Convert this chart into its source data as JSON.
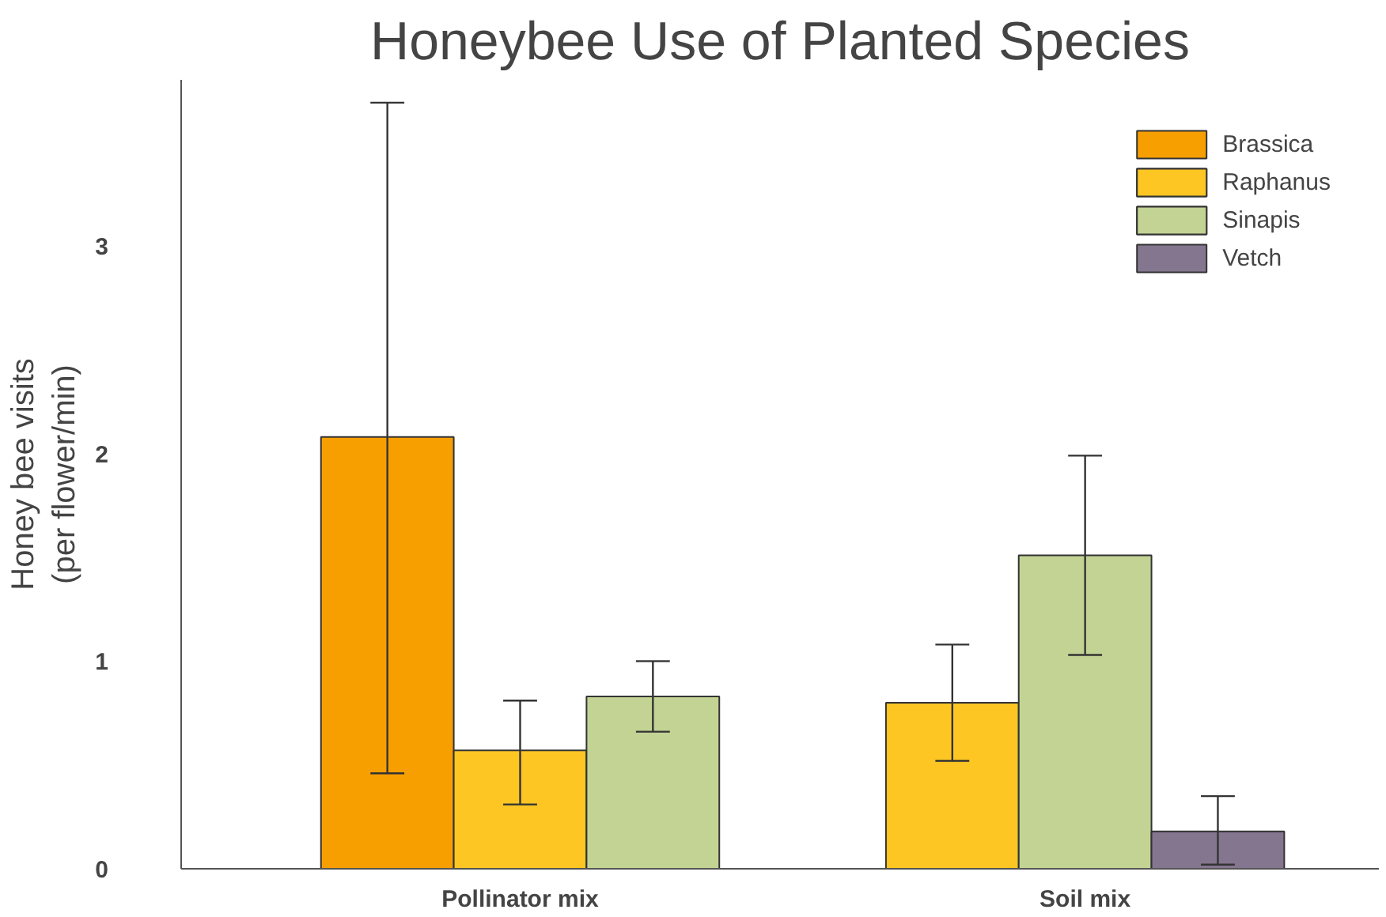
{
  "chart_data": {
    "type": "bar",
    "title": "Honeybee Use of Planted Species",
    "ylabel": "Honey bee visits\n(per flower/min)",
    "categories": [
      "Pollinator mix",
      "Soil mix"
    ],
    "series": [
      {
        "name": "Brassica",
        "color": "#f79f00",
        "values": [
          2.08,
          null
        ],
        "errors": [
          [
            0.46,
            3.69
          ],
          null
        ]
      },
      {
        "name": "Raphanus",
        "color": "#fdc623",
        "values": [
          0.57,
          0.8
        ],
        "errors": [
          [
            0.31,
            0.81
          ],
          [
            0.52,
            1.08
          ]
        ]
      },
      {
        "name": "Sinapis",
        "color": "#c2d394",
        "values": [
          0.83,
          1.51
        ],
        "errors": [
          [
            0.66,
            1.0
          ],
          [
            1.03,
            1.99
          ]
        ]
      },
      {
        "name": "Vetch",
        "color": "#857690",
        "values": [
          null,
          0.18
        ],
        "errors": [
          null,
          [
            0.02,
            0.35
          ]
        ]
      }
    ],
    "ylim": [
      0,
      3.8
    ],
    "yticks": [
      0,
      1,
      2,
      3
    ],
    "grid": false,
    "legend": "top right"
  }
}
